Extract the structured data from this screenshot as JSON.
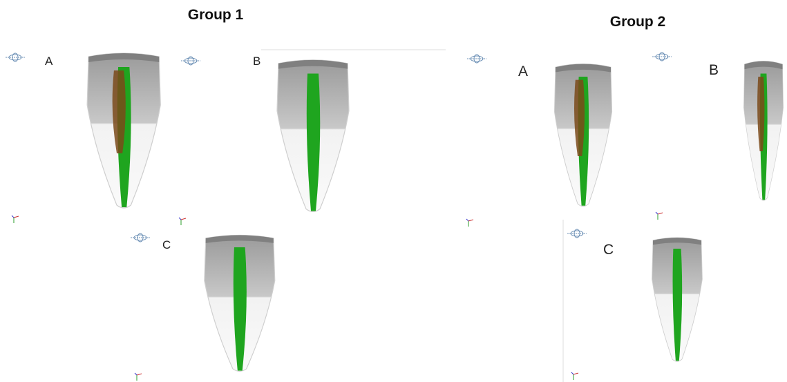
{
  "groups": [
    {
      "title": "Group 1",
      "panels": [
        "A",
        "B",
        "C"
      ]
    },
    {
      "title": "Group 2",
      "panels": [
        "A",
        "B",
        "C"
      ]
    }
  ]
}
